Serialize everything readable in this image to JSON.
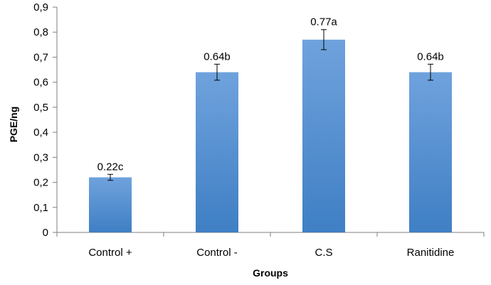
{
  "chart_data": {
    "type": "bar",
    "categories": [
      "Control +",
      "Control -",
      "C.S",
      "Ranitidine"
    ],
    "values": [
      0.22,
      0.64,
      0.77,
      0.64
    ],
    "errors": [
      0.012,
      0.032,
      0.04,
      0.032
    ],
    "data_labels": [
      "0.22c",
      "0.64b",
      "0.77a",
      "0.64b"
    ],
    "title": "",
    "xlabel": "Groups",
    "ylabel": "PGE/ng",
    "ylim": [
      0,
      0.9
    ],
    "yticks": [
      0,
      0.1,
      0.2,
      0.3,
      0.4,
      0.5,
      0.6,
      0.7,
      0.8,
      0.9
    ],
    "ytick_labels": [
      "0",
      "0,1",
      "0,2",
      "0,3",
      "0,4",
      "0,5",
      "0,6",
      "0,7",
      "0,8",
      "0,9"
    ],
    "grid": false,
    "legend": "none",
    "colors": {
      "bar_top": "#6fa2dd",
      "bar_bottom": "#3f7fc4",
      "axis": "#7f7f7f"
    }
  }
}
